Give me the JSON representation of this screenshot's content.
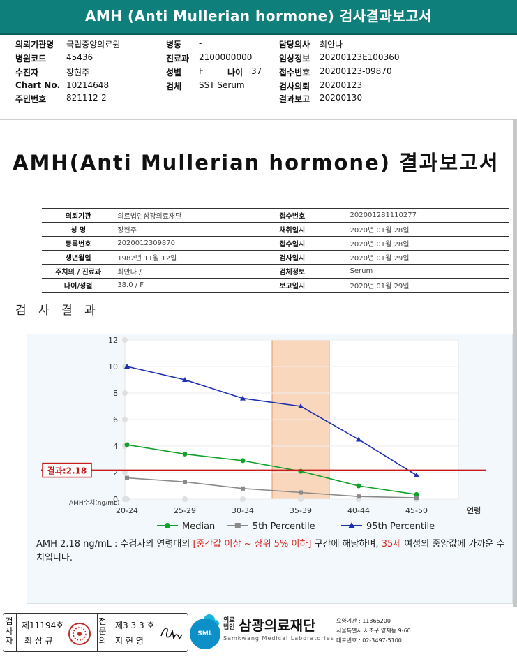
{
  "window_title": "AMH (Anti Mullerian hormone) 검사결과보고서",
  "header": {
    "left": [
      {
        "label": "의뢰기관명",
        "value": "국립중앙의료원"
      },
      {
        "label": "병원코드",
        "value": "45436"
      },
      {
        "label": "수진자",
        "value": "장현주"
      },
      {
        "label": "Chart No.",
        "value": "10214648"
      },
      {
        "label": "주민번호",
        "value": "821112-2"
      }
    ],
    "mid": [
      {
        "label": "병동",
        "value": "-"
      },
      {
        "label": "진료과",
        "value": "2100000000"
      },
      {
        "label": "성별",
        "value": "F"
      },
      {
        "label": "검체",
        "value": "SST Serum"
      }
    ],
    "age_label": "나이",
    "age_value": "37",
    "right": [
      {
        "label": "담당의사",
        "value": "최안나"
      },
      {
        "label": "임상정보",
        "value": "20200123E100360"
      },
      {
        "label": "접수번호",
        "value": "20200123-09870"
      },
      {
        "label": "검사의뢰",
        "value": "20200123"
      },
      {
        "label": "결과보고",
        "value": "20200130"
      }
    ]
  },
  "report_title": "AMH(Anti Mullerian hormone) 결과보고서",
  "info_table": [
    {
      "k1": "의뢰기관",
      "v1": "의료법인삼광의료재단",
      "k2": "접수번호",
      "v2": "202001281110277"
    },
    {
      "k1": "성      명",
      "v1": "장현주",
      "k2": "채취일시",
      "v2": "2020년 01월 28일"
    },
    {
      "k1": "등록번호",
      "v1": "2020012309870",
      "k2": "접수일시",
      "v2": "2020년 01월 28일"
    },
    {
      "k1": "생년월일",
      "v1": "1982년 11월 12일",
      "k2": "검사일시",
      "v2": "2020년 01월 29일"
    },
    {
      "k1": "주치의 / 진료과",
      "v1": "최안나 /",
      "k2": "검체정보",
      "v2": "Serum"
    },
    {
      "k1": "나이/성별",
      "v1": "38.0 /   F",
      "k2": "보고일시",
      "v2": "2020년 01월 29일"
    }
  ],
  "section_title": "검 사 결 과",
  "chart_data": {
    "type": "line",
    "categories": [
      "20-24",
      "25-29",
      "30-34",
      "35-39",
      "40-44",
      "45-50"
    ],
    "x_axis_end_label": "연령",
    "y_axis_label": "AMH수치(ng/mL)",
    "ylim": [
      0,
      12
    ],
    "y_ticks": [
      0,
      2,
      4,
      6,
      8,
      10,
      12
    ],
    "grid": true,
    "legend_position": "bottom",
    "series": [
      {
        "name": "Median",
        "color": "#12a12a",
        "marker": "circle",
        "values": [
          4.1,
          3.4,
          2.9,
          2.1,
          1.0,
          0.35
        ]
      },
      {
        "name": "5th Percentile",
        "color": "#8a8a8a",
        "marker": "square",
        "values": [
          1.6,
          1.3,
          0.8,
          0.5,
          0.2,
          0.1
        ]
      },
      {
        "name": "95th Percentile",
        "color": "#1e2fb0",
        "marker": "triangle",
        "values": [
          10.0,
          9.0,
          7.6,
          7.0,
          4.5,
          1.8
        ]
      }
    ],
    "result_line": {
      "label": "결과:2.18",
      "value": 2.18,
      "color": "#c8191b"
    },
    "highlight_band": {
      "category": "35-39",
      "color": "#f6c9a6"
    }
  },
  "note": {
    "part1": "AMH  2.18 ng/mL : 수검자의 연령대의 ",
    "hl1": "[중간값 이상 ~ 상위 5% 이하]",
    "part2": "  구간에 해당하며, ",
    "hl2": "35세",
    "part3": " 여성의 중앙값에 가까운 수치입니다."
  },
  "footer": {
    "sig1_vertical": "검사자",
    "sig1_no": "제11194호",
    "sig1_name": "최 삼 규",
    "sig2_vertical": "전문의",
    "sig2_no": "제3 3 3 호",
    "sig2_name": "지 현 영",
    "logo_badge": "SML",
    "logo_prefix": "의료\n법인",
    "logo_name": "삼광의료재단",
    "logo_english": "Samkwang Medical Laboratories",
    "code_line": "요양기관 : 11365200",
    "addr_line": "서울특별시 서초구 양재동 9-60",
    "tel_line": "대표번호 : 02-3497-5100"
  }
}
